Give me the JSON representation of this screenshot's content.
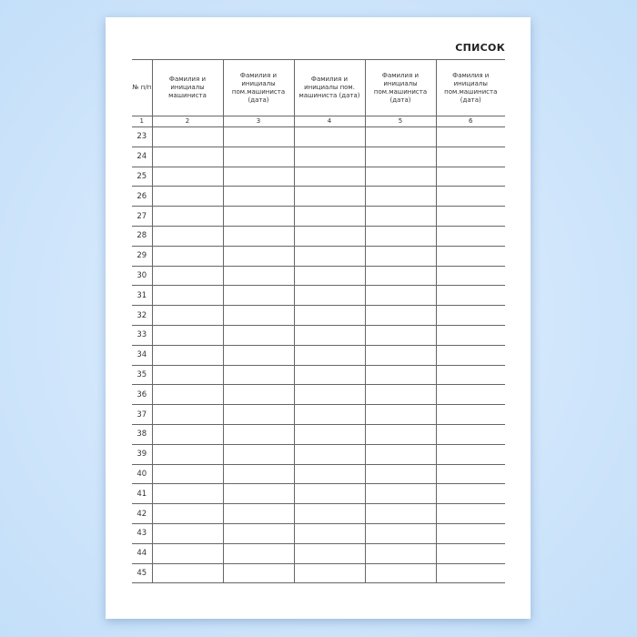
{
  "title": "СПИСОК",
  "columns": [
    "№ п/п",
    "Фамилия и инициалы машиниста",
    "Фамилия и инициалы пом.машиниста (дата)",
    "Фамилия и инициалы пом. машиниста (дата)",
    "Фамилия и инициалы пом.машиниста (дата)",
    "Фамилия и инициалы пом.машиниста (дата)"
  ],
  "column_numbers": [
    "1",
    "2",
    "3",
    "4",
    "5",
    "6"
  ],
  "rows": [
    "23",
    "24",
    "25",
    "26",
    "27",
    "28",
    "29",
    "30",
    "31",
    "32",
    "33",
    "34",
    "35",
    "36",
    "37",
    "38",
    "39",
    "40",
    "41",
    "42",
    "43",
    "44",
    "45"
  ],
  "colors": {
    "background": "#cfe5fb",
    "page": "#ffffff",
    "lines": "#666666"
  }
}
